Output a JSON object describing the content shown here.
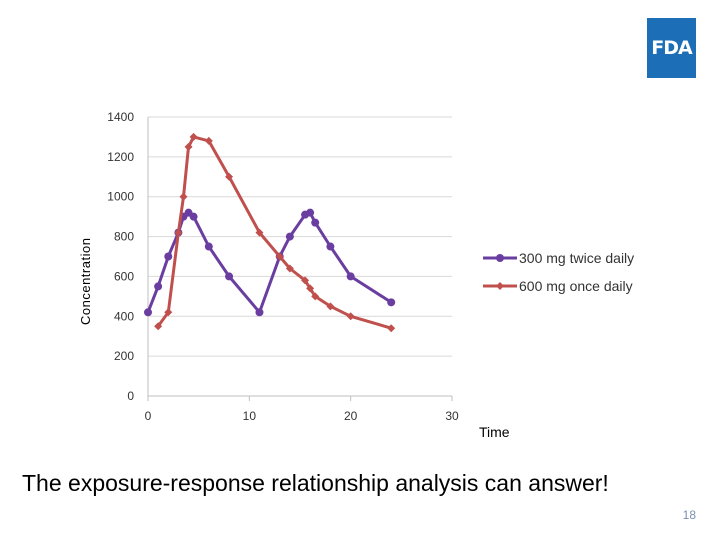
{
  "logo": {
    "text": "FDA",
    "color": "#1c6fb7"
  },
  "caption": "The exposure-response relationship analysis  can answer!",
  "page_number": "18",
  "chart_data": {
    "type": "line",
    "title": "",
    "xlabel": "Time",
    "ylabel": "Concentration",
    "xlim": [
      0,
      30
    ],
    "ylim": [
      0,
      1400
    ],
    "xticks": [
      0,
      10,
      20,
      30
    ],
    "yticks": [
      0,
      200,
      400,
      600,
      800,
      1000,
      1200,
      1400
    ],
    "grid": "horizontal",
    "legend": "right",
    "series": [
      {
        "name": "300 mg twice daily",
        "color": "#6a3ea1",
        "marker": "circle",
        "points": [
          [
            0,
            420
          ],
          [
            1,
            550
          ],
          [
            2,
            700
          ],
          [
            3,
            820
          ],
          [
            3.5,
            900
          ],
          [
            4,
            920
          ],
          [
            4.5,
            900
          ],
          [
            6,
            750
          ],
          [
            8,
            600
          ],
          [
            11,
            420
          ],
          [
            13,
            700
          ],
          [
            14,
            800
          ],
          [
            15.5,
            910
          ],
          [
            16,
            920
          ],
          [
            16.5,
            870
          ],
          [
            18,
            750
          ],
          [
            20,
            600
          ],
          [
            24,
            470
          ]
        ]
      },
      {
        "name": "600 mg once daily",
        "color": "#c0504d",
        "marker": "diamond",
        "points": [
          [
            1,
            350
          ],
          [
            2,
            420
          ],
          [
            3,
            820
          ],
          [
            3.5,
            1000
          ],
          [
            4,
            1250
          ],
          [
            4.5,
            1300
          ],
          [
            6,
            1280
          ],
          [
            8,
            1100
          ],
          [
            11,
            820
          ],
          [
            13,
            700
          ],
          [
            14,
            640
          ],
          [
            15.5,
            580
          ],
          [
            16,
            540
          ],
          [
            16.5,
            500
          ],
          [
            18,
            450
          ],
          [
            20,
            400
          ],
          [
            24,
            340
          ]
        ]
      }
    ]
  }
}
